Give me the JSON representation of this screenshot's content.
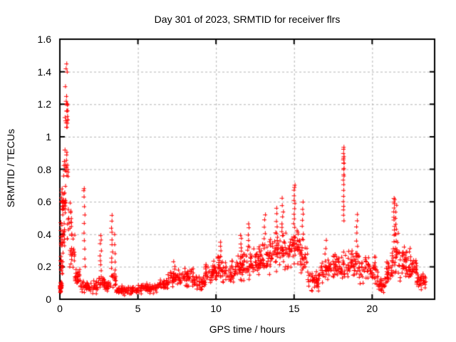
{
  "window": {
    "background": "#ffffff"
  },
  "chart_data": {
    "type": "scatter",
    "title": "Day 301 of 2023, SRMTID for receiver flrs",
    "xlabel": "GPS time / hours",
    "ylabel": "SRMTID / TECUs",
    "xlim": [
      0,
      24
    ],
    "ylim": [
      0,
      1.6
    ],
    "x_ticks": [
      0,
      5,
      10,
      15,
      20
    ],
    "x_tick_labels": [
      "0",
      "5",
      "10",
      "15",
      "20"
    ],
    "y_ticks": [
      0,
      0.2,
      0.4,
      0.6,
      0.8,
      1.0,
      1.2,
      1.4,
      1.6
    ],
    "y_tick_labels": [
      "0",
      "0.2",
      "0.4",
      "0.6",
      "0.8",
      "1",
      "1.2",
      "1.4",
      "1.6"
    ],
    "grid": true,
    "grid_color": "#b4b4b4",
    "border_color": "#000000",
    "marker": "plus",
    "marker_color": "#ff0000",
    "marker_size": 7,
    "series_name": "SRMTID",
    "seed": 301,
    "peak_points": [
      [
        0.42,
        1.45
      ],
      [
        0.38,
        1.42
      ],
      [
        0.45,
        1.4
      ],
      [
        0.34,
        1.31
      ],
      [
        0.41,
        1.25
      ],
      [
        0.39,
        1.22
      ],
      [
        0.46,
        1.2
      ],
      [
        0.36,
        1.1
      ],
      [
        0.44,
        1.06
      ],
      [
        0.31,
        0.92
      ],
      [
        0.42,
        0.89
      ],
      [
        0.27,
        0.85
      ],
      [
        0.49,
        0.8
      ],
      [
        0.22,
        0.76
      ],
      [
        1.52,
        0.67
      ],
      [
        15.02,
        0.69
      ],
      [
        18.16,
        0.925
      ],
      [
        18.18,
        0.88
      ],
      [
        18.15,
        0.86
      ],
      [
        18.17,
        0.84
      ],
      [
        18.16,
        0.8
      ],
      [
        18.18,
        0.76
      ],
      [
        21.44,
        0.615
      ],
      [
        21.38,
        0.6
      ]
    ],
    "bands": [
      [
        0.02,
        0.12,
        0.04,
        0.12,
        30
      ],
      [
        0.02,
        0.18,
        0.14,
        0.3,
        14
      ],
      [
        0.05,
        0.3,
        0.3,
        0.5,
        22
      ],
      [
        0.08,
        0.35,
        0.5,
        0.72,
        30
      ],
      [
        0.25,
        0.52,
        0.72,
        0.92,
        12
      ],
      [
        0.28,
        0.5,
        0.95,
        1.28,
        13
      ],
      [
        0.45,
        0.75,
        0.35,
        0.62,
        18
      ],
      [
        0.6,
        0.95,
        0.18,
        0.4,
        20
      ],
      [
        0.9,
        1.3,
        0.07,
        0.2,
        26
      ],
      [
        1.3,
        2.4,
        0.03,
        0.13,
        55
      ],
      [
        2.4,
        2.85,
        0.05,
        0.18,
        24
      ],
      [
        2.85,
        3.25,
        0.04,
        0.12,
        22
      ],
      [
        3.25,
        3.6,
        0.07,
        0.18,
        14
      ],
      [
        3.6,
        5.0,
        0.025,
        0.09,
        70
      ],
      [
        5.0,
        6.2,
        0.03,
        0.1,
        58
      ],
      [
        6.2,
        6.9,
        0.04,
        0.13,
        36
      ],
      [
        6.9,
        7.7,
        0.06,
        0.19,
        42
      ],
      [
        7.7,
        8.6,
        0.07,
        0.2,
        48
      ],
      [
        8.6,
        9.3,
        0.05,
        0.16,
        36
      ],
      [
        9.3,
        10.1,
        0.08,
        0.24,
        48
      ],
      [
        10.1,
        11.2,
        0.09,
        0.27,
        60
      ],
      [
        11.2,
        12.1,
        0.1,
        0.3,
        55
      ],
      [
        12.1,
        12.8,
        0.12,
        0.34,
        45
      ],
      [
        12.8,
        13.6,
        0.14,
        0.38,
        50
      ],
      [
        13.6,
        14.6,
        0.17,
        0.43,
        58
      ],
      [
        14.6,
        15.35,
        0.18,
        0.46,
        50
      ],
      [
        15.35,
        15.85,
        0.13,
        0.38,
        30
      ],
      [
        15.85,
        16.6,
        0.04,
        0.18,
        40
      ],
      [
        16.6,
        17.6,
        0.08,
        0.28,
        50
      ],
      [
        17.6,
        18.3,
        0.1,
        0.3,
        40
      ],
      [
        18.3,
        19.1,
        0.1,
        0.33,
        45
      ],
      [
        19.1,
        20.35,
        0.08,
        0.28,
        65
      ],
      [
        20.35,
        20.85,
        0.03,
        0.14,
        28
      ],
      [
        20.85,
        21.25,
        0.08,
        0.24,
        26
      ],
      [
        21.25,
        21.75,
        0.14,
        0.42,
        34
      ],
      [
        21.75,
        22.25,
        0.1,
        0.33,
        32
      ],
      [
        22.25,
        22.85,
        0.09,
        0.27,
        38
      ],
      [
        22.85,
        23.45,
        0.05,
        0.17,
        34
      ]
    ],
    "spikes": [
      [
        1.55,
        0.2,
        0.68,
        10,
        0.05
      ],
      [
        2.6,
        0.18,
        0.4,
        8,
        0.05
      ],
      [
        3.32,
        0.15,
        0.52,
        11,
        0.04
      ],
      [
        3.5,
        0.12,
        0.4,
        6,
        0.04
      ],
      [
        7.3,
        0.14,
        0.23,
        5,
        0.05
      ],
      [
        10.25,
        0.24,
        0.36,
        5,
        0.05
      ],
      [
        11.6,
        0.27,
        0.4,
        6,
        0.05
      ],
      [
        12.05,
        0.3,
        0.47,
        6,
        0.05
      ],
      [
        13.1,
        0.34,
        0.52,
        6,
        0.05
      ],
      [
        13.85,
        0.37,
        0.56,
        6,
        0.05
      ],
      [
        14.25,
        0.4,
        0.62,
        7,
        0.05
      ],
      [
        15.0,
        0.44,
        0.7,
        10,
        0.05
      ],
      [
        15.55,
        0.37,
        0.6,
        7,
        0.05
      ],
      [
        17.0,
        0.24,
        0.36,
        4,
        0.05
      ],
      [
        18.16,
        0.48,
        0.93,
        15,
        0.03
      ],
      [
        19.0,
        0.29,
        0.52,
        7,
        0.05
      ],
      [
        21.4,
        0.4,
        0.62,
        9,
        0.04
      ],
      [
        21.52,
        0.36,
        0.58,
        7,
        0.04
      ],
      [
        22.4,
        0.24,
        0.31,
        4,
        0.05
      ]
    ]
  }
}
